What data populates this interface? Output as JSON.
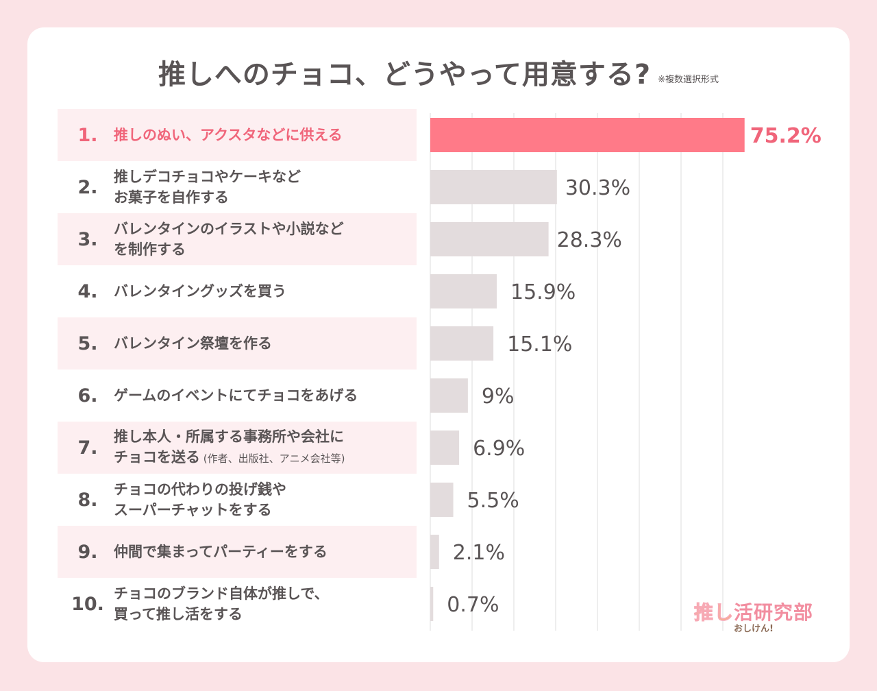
{
  "chart_data": {
    "type": "bar",
    "orientation": "horizontal",
    "title": "推しへのチョコ、どうやって用意する?",
    "note": "※複数選択形式",
    "xlim": [
      0,
      100
    ],
    "unit": "%",
    "categories": [
      {
        "rank": "1.",
        "label": "推しのぬい、アクスタなどに供える",
        "sub": ""
      },
      {
        "rank": "2.",
        "label": "推しデコチョコやケーキなど\nお菓子を自作する",
        "sub": ""
      },
      {
        "rank": "3.",
        "label": "バレンタインのイラストや小説など\nを制作する",
        "sub": ""
      },
      {
        "rank": "4.",
        "label": "バレンタイングッズを買う",
        "sub": ""
      },
      {
        "rank": "5.",
        "label": "バレンタイン祭壇を作る",
        "sub": ""
      },
      {
        "rank": "6.",
        "label": "ゲームのイベントにてチョコをあげる",
        "sub": ""
      },
      {
        "rank": "7.",
        "label": "推し本人・所属する事務所や会社に\nチョコを送る",
        "sub": "(作者、出版社、アニメ会社等)"
      },
      {
        "rank": "8.",
        "label": "チョコの代わりの投げ銭や\nスーパーチャットをする",
        "sub": ""
      },
      {
        "rank": "9.",
        "label": "仲間で集まってパーティーをする",
        "sub": ""
      },
      {
        "rank": "10.",
        "label": "チョコのブランド自体が推しで、\n買って推し活をする",
        "sub": ""
      }
    ],
    "values": [
      75.2,
      30.3,
      28.3,
      15.9,
      15.1,
      9,
      6.9,
      5.5,
      2.1,
      0.7
    ],
    "value_labels": [
      "75.2%",
      "30.3%",
      "28.3%",
      "15.9%",
      "15.1%",
      "9%",
      "6.9%",
      "5.5%",
      "2.1%",
      "0.7%"
    ],
    "colors": {
      "highlight": "#ff7a88",
      "bar": "#e3dcdd",
      "grid": "#dddddd",
      "highlight_text": "#f0657a",
      "text": "#595455"
    }
  },
  "logo": {
    "main_left": "推し",
    "main_right": "活研究部",
    "sub": "おしけん!"
  }
}
